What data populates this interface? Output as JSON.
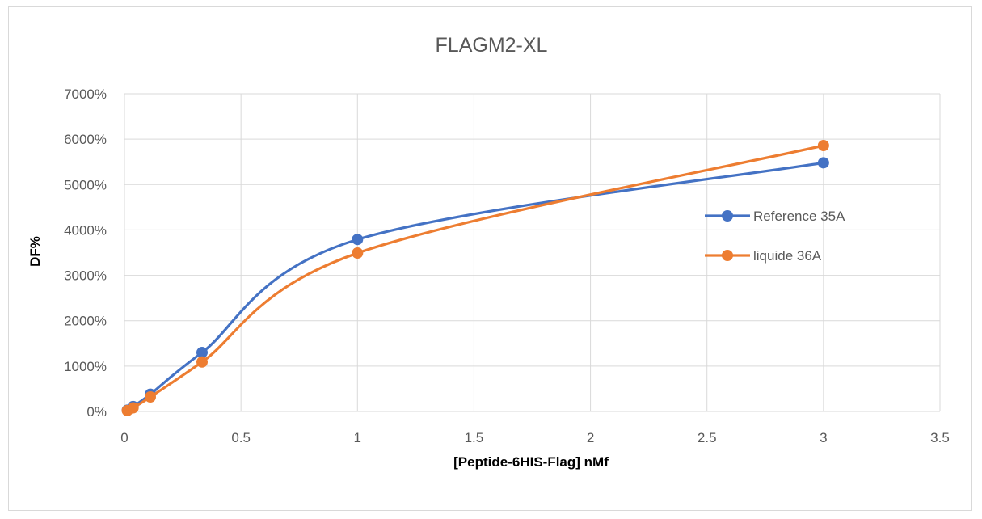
{
  "chart_data": {
    "type": "line",
    "title": "FLAGM2-XL",
    "xlabel": "[Peptide-6HIS-Flag] nMf",
    "ylabel": "DF%",
    "xlim": [
      0,
      3.5
    ],
    "ylim": [
      0,
      7000
    ],
    "x_ticks": [
      "0",
      "0.5",
      "1",
      "1.5",
      "2",
      "2.5",
      "3",
      "3.5"
    ],
    "y_ticks": [
      "0%",
      "1000%",
      "2000%",
      "3000%",
      "4000%",
      "5000%",
      "6000%",
      "7000%"
    ],
    "grid": true,
    "smooth": true,
    "legend_position": "right",
    "series": [
      {
        "name": "Reference 35A",
        "color": "#4472C4",
        "x": [
          0.0123,
          0.037,
          0.111,
          0.333,
          1,
          3
        ],
        "y": [
          30,
          110,
          380,
          1300,
          3790,
          5480
        ]
      },
      {
        "name": "liquide 36A",
        "color": "#ED7D31",
        "x": [
          0.0123,
          0.037,
          0.111,
          0.333,
          1,
          3
        ],
        "y": [
          20,
          80,
          320,
          1090,
          3490,
          5860
        ]
      }
    ]
  }
}
